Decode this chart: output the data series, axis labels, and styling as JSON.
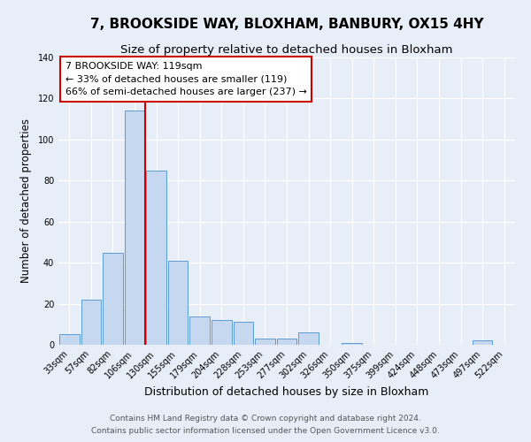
{
  "title": "7, BROOKSIDE WAY, BLOXHAM, BANBURY, OX15 4HY",
  "subtitle": "Size of property relative to detached houses in Bloxham",
  "xlabel": "Distribution of detached houses by size in Bloxham",
  "ylabel": "Number of detached properties",
  "bar_labels": [
    "33sqm",
    "57sqm",
    "82sqm",
    "106sqm",
    "130sqm",
    "155sqm",
    "179sqm",
    "204sqm",
    "228sqm",
    "253sqm",
    "277sqm",
    "302sqm",
    "326sqm",
    "350sqm",
    "375sqm",
    "399sqm",
    "424sqm",
    "448sqm",
    "473sqm",
    "497sqm",
    "522sqm"
  ],
  "bar_values": [
    5,
    22,
    45,
    114,
    85,
    41,
    14,
    12,
    11,
    3,
    3,
    6,
    0,
    1,
    0,
    0,
    0,
    0,
    0,
    2,
    0
  ],
  "bar_color": "#c5d8f0",
  "bar_edge_color": "#5b9bd5",
  "vline_color": "#cc0000",
  "vline_x_index": 4,
  "annotation_box_text": "7 BROOKSIDE WAY: 119sqm\n← 33% of detached houses are smaller (119)\n66% of semi-detached houses are larger (237) →",
  "ylim": [
    0,
    140
  ],
  "yticks": [
    0,
    20,
    40,
    60,
    80,
    100,
    120,
    140
  ],
  "background_color": "#e8eef8",
  "plot_background_color": "#e8eef8",
  "footer_line1": "Contains HM Land Registry data © Crown copyright and database right 2024.",
  "footer_line2": "Contains public sector information licensed under the Open Government Licence v3.0.",
  "title_fontsize": 11,
  "subtitle_fontsize": 9.5,
  "xlabel_fontsize": 9,
  "ylabel_fontsize": 8.5,
  "tick_fontsize": 7,
  "annotation_fontsize": 8,
  "footer_fontsize": 6.5
}
